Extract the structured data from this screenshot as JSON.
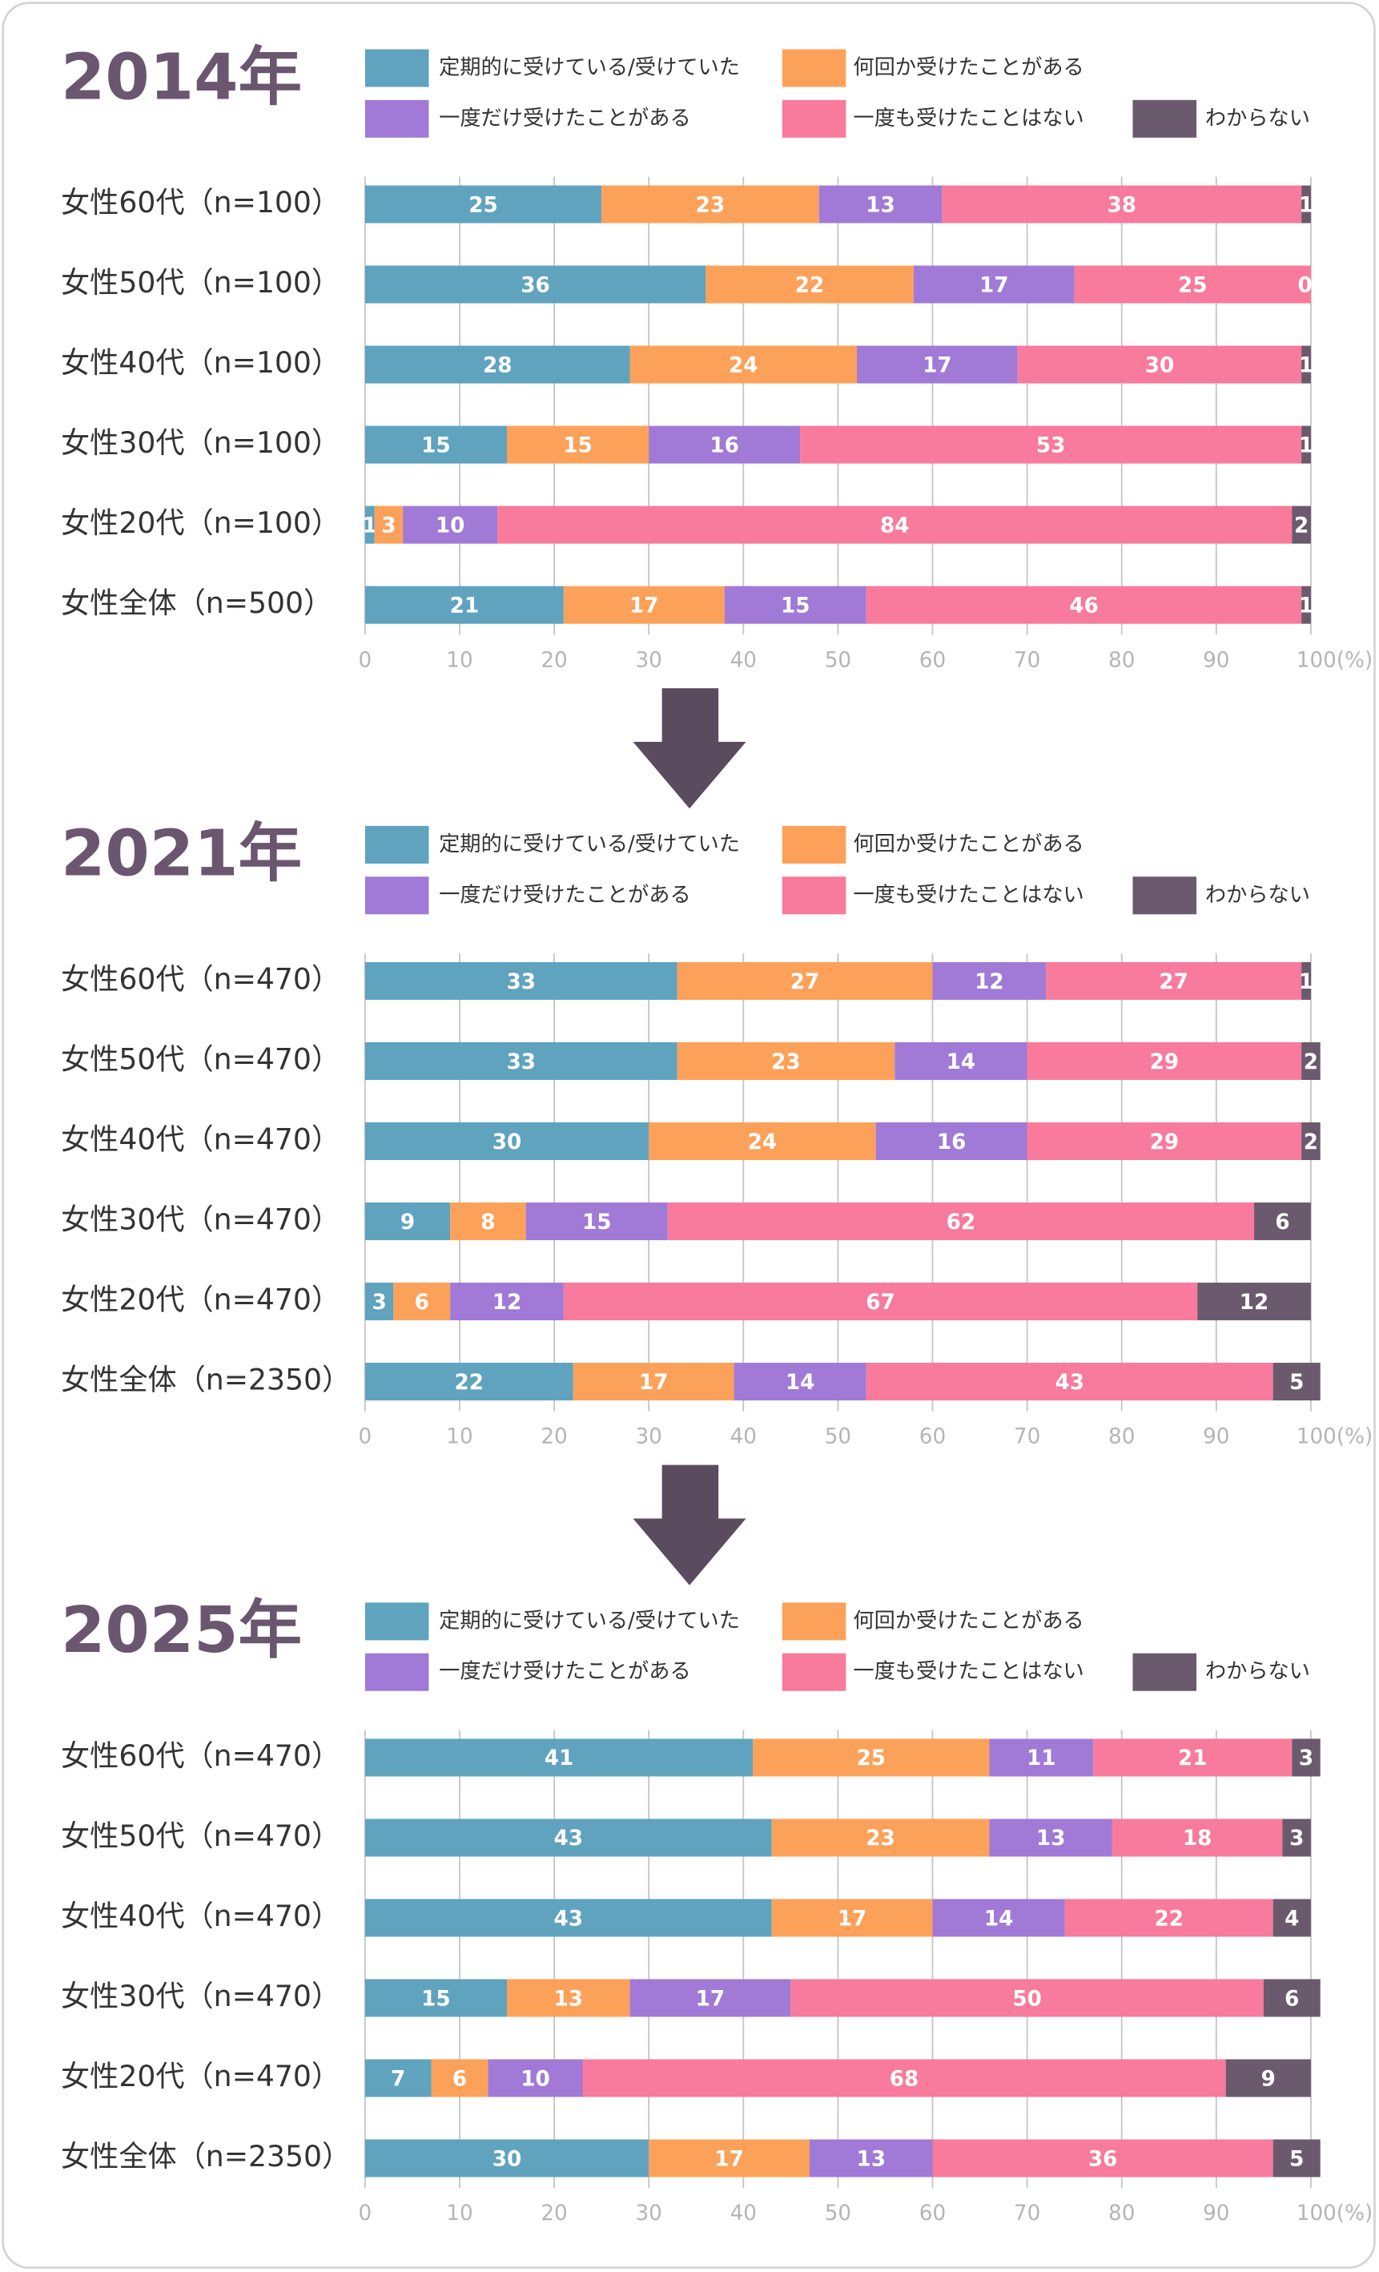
{
  "chart_data": [
    {
      "type": "bar",
      "title": "2014年",
      "categories": [
        "女性60代（n=100）",
        "女性50代（n=100）",
        "女性40代（n=100）",
        "女性30代（n=100）",
        "女性20代（n=100）",
        "女性全体（n=500）"
      ],
      "series": [
        {
          "name": "定期的に受けている/受けていた",
          "color": "#5fa3bf",
          "values": [
            25,
            36,
            28,
            15,
            1,
            21
          ]
        },
        {
          "name": "何回か受けたことがある",
          "color": "#fca15a",
          "values": [
            23,
            22,
            24,
            15,
            3,
            17
          ]
        },
        {
          "name": "一度だけ受けたことがある",
          "color": "#a07ad6",
          "values": [
            13,
            17,
            17,
            16,
            10,
            15
          ]
        },
        {
          "name": "一度も受けたことはない",
          "color": "#f87a9c",
          "values": [
            38,
            25,
            30,
            53,
            84,
            46
          ]
        },
        {
          "name": "わからない",
          "color": "#6b5a6e",
          "values": [
            1,
            0,
            1,
            1,
            2,
            1
          ]
        }
      ],
      "xlim": [
        0,
        100
      ],
      "xticks": [
        0,
        10,
        20,
        30,
        40,
        50,
        60,
        70,
        80,
        90,
        {
          "value": 100,
          "label": "100(%)"
        }
      ],
      "grid": true
    },
    {
      "type": "bar",
      "title": "2021年",
      "categories": [
        "女性60代（n=470）",
        "女性50代（n=470）",
        "女性40代（n=470）",
        "女性30代（n=470）",
        "女性20代（n=470）",
        "女性全体（n=2350）"
      ],
      "series": [
        {
          "name": "定期的に受けている/受けていた",
          "color": "#5fa3bf",
          "values": [
            33,
            33,
            30,
            9,
            3,
            22
          ]
        },
        {
          "name": "何回か受けたことがある",
          "color": "#fca15a",
          "values": [
            27,
            23,
            24,
            8,
            6,
            17
          ]
        },
        {
          "name": "一度だけ受けたことがある",
          "color": "#a07ad6",
          "values": [
            12,
            14,
            16,
            15,
            12,
            14
          ]
        },
        {
          "name": "一度も受けたことはない",
          "color": "#f87a9c",
          "values": [
            27,
            29,
            29,
            62,
            67,
            43
          ]
        },
        {
          "name": "わからない",
          "color": "#6b5a6e",
          "values": [
            1,
            2,
            2,
            6,
            12,
            5
          ]
        }
      ],
      "xlim": [
        0,
        100
      ],
      "xticks": [
        0,
        10,
        20,
        30,
        40,
        50,
        60,
        70,
        80,
        90,
        {
          "value": 100,
          "label": "100(%)"
        }
      ],
      "grid": true
    },
    {
      "type": "bar",
      "title": "2025年",
      "categories": [
        "女性60代（n=470）",
        "女性50代（n=470）",
        "女性40代（n=470）",
        "女性30代（n=470）",
        "女性20代（n=470）",
        "女性全体（n=2350）"
      ],
      "series": [
        {
          "name": "定期的に受けている/受けていた",
          "color": "#5fa3bf",
          "values": [
            41,
            43,
            43,
            15,
            7,
            30
          ]
        },
        {
          "name": "何回か受けたことがある",
          "color": "#fca15a",
          "values": [
            25,
            23,
            17,
            13,
            6,
            17
          ]
        },
        {
          "name": "一度だけ受けたことがある",
          "color": "#a07ad6",
          "values": [
            11,
            13,
            14,
            17,
            10,
            13
          ]
        },
        {
          "name": "一度も受けたことはない",
          "color": "#f87a9c",
          "values": [
            21,
            18,
            22,
            50,
            68,
            36
          ]
        },
        {
          "name": "わからない",
          "color": "#6b5a6e",
          "values": [
            3,
            3,
            4,
            6,
            9,
            5
          ]
        }
      ],
      "xlim": [
        0,
        100
      ],
      "xticks": [
        0,
        10,
        20,
        30,
        40,
        50,
        60,
        70,
        80,
        90,
        {
          "value": 100,
          "label": "100(%)"
        }
      ],
      "grid": true
    }
  ]
}
